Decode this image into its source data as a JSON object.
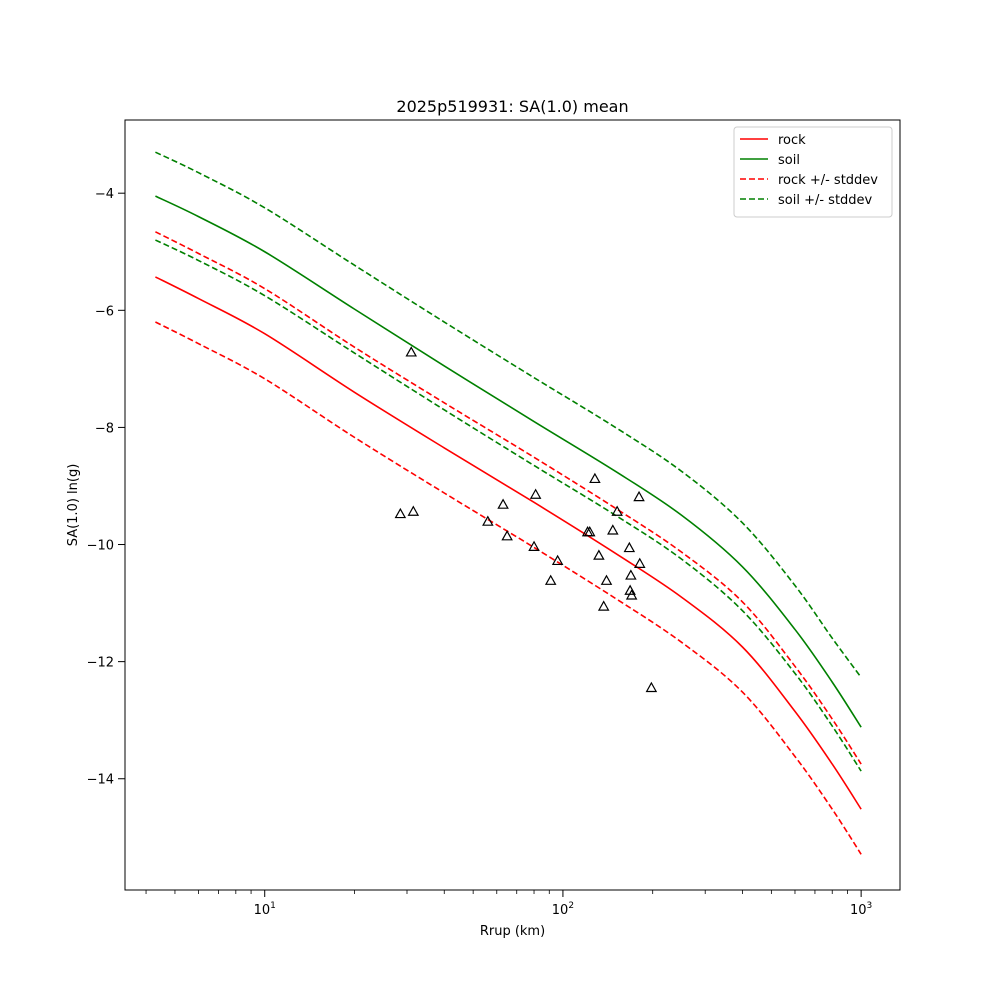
{
  "chart_data": {
    "type": "line",
    "title": "2025p519931: SA(1.0) mean",
    "xlabel": "Rrup (km)",
    "ylabel": "SA(1.0) ln(g)",
    "xscale": "log",
    "xlim": [
      3.4,
      1350
    ],
    "ylim": [
      -15.9,
      -2.75
    ],
    "x_major_ticks": [
      10,
      100,
      1000
    ],
    "x_tick_labels": [
      {
        "base": "10",
        "exp": "1"
      },
      {
        "base": "10",
        "exp": "2"
      },
      {
        "base": "10",
        "exp": "3"
      }
    ],
    "y_ticks": [
      -14,
      -12,
      -10,
      -8,
      -6,
      -4
    ],
    "y_tick_labels": [
      "−14",
      "−12",
      "−10",
      "−8",
      "−6",
      "−4"
    ],
    "grid": false,
    "legend_position": "top-right",
    "colors": {
      "rock": "#ff0000",
      "soil": "#008000",
      "marker": "#000000"
    },
    "series": [
      {
        "name": "rock",
        "style": "solid",
        "color": "#ff0000",
        "x": [
          4.3,
          6,
          10,
          20,
          40,
          80,
          150,
          250,
          400,
          600,
          800,
          1000
        ],
        "y": [
          -5.43,
          -5.8,
          -6.4,
          -7.4,
          -8.35,
          -9.28,
          -10.15,
          -10.9,
          -11.75,
          -12.85,
          -13.75,
          -14.52
        ]
      },
      {
        "name": "soil",
        "style": "solid",
        "color": "#008000",
        "x": [
          4.3,
          6,
          10,
          20,
          40,
          80,
          150,
          250,
          400,
          600,
          800,
          1000
        ],
        "y": [
          -4.05,
          -4.4,
          -5.0,
          -5.98,
          -6.95,
          -7.9,
          -8.75,
          -9.5,
          -10.38,
          -11.45,
          -12.35,
          -13.12
        ]
      },
      {
        "name": "rock +/- stddev",
        "style": "dashed",
        "color": "#ff0000",
        "x": [
          4.3,
          6,
          10,
          20,
          40,
          80,
          150,
          250,
          400,
          600,
          800,
          1000
        ],
        "y": [
          -4.66,
          -5.03,
          -5.63,
          -6.63,
          -7.58,
          -8.51,
          -9.38,
          -10.13,
          -10.98,
          -12.08,
          -12.98,
          -13.75
        ]
      },
      {
        "name": "",
        "style": "dashed",
        "color": "#ff0000",
        "x": [
          4.3,
          6,
          10,
          20,
          40,
          80,
          150,
          250,
          400,
          600,
          800,
          1000
        ],
        "y": [
          -6.2,
          -6.57,
          -7.17,
          -8.17,
          -9.12,
          -10.05,
          -10.92,
          -11.67,
          -12.52,
          -13.62,
          -14.52,
          -15.29
        ]
      },
      {
        "name": "soil +/- stddev",
        "style": "dashed",
        "color": "#008000",
        "x": [
          4.3,
          6,
          10,
          20,
          40,
          80,
          150,
          250,
          400,
          600,
          800,
          1000
        ],
        "y": [
          -3.3,
          -3.65,
          -4.25,
          -5.23,
          -6.2,
          -7.15,
          -8.0,
          -8.75,
          -9.63,
          -10.7,
          -11.6,
          -12.27
        ]
      },
      {
        "name": "",
        "style": "dashed",
        "color": "#008000",
        "x": [
          4.3,
          6,
          10,
          20,
          40,
          80,
          150,
          250,
          400,
          600,
          800,
          1000
        ],
        "y": [
          -4.8,
          -5.15,
          -5.75,
          -6.73,
          -7.7,
          -8.65,
          -9.5,
          -10.25,
          -11.13,
          -12.2,
          -13.1,
          -13.87
        ]
      }
    ],
    "points": {
      "marker": "triangle-open",
      "x": [
        28.5,
        31,
        31.5,
        56,
        63,
        65,
        80,
        81,
        91,
        96,
        121,
        123,
        128,
        132,
        137,
        140,
        147,
        152,
        167,
        168,
        169,
        170,
        180,
        181,
        198
      ],
      "y": [
        -9.48,
        -6.72,
        -9.44,
        -9.61,
        -9.32,
        -9.86,
        -10.04,
        -9.15,
        -10.62,
        -10.28,
        -9.79,
        -9.79,
        -8.88,
        -10.19,
        -11.06,
        -10.62,
        -9.76,
        -9.44,
        -10.06,
        -10.79,
        -10.53,
        -10.87,
        -9.19,
        -10.33,
        -12.45
      ]
    }
  }
}
